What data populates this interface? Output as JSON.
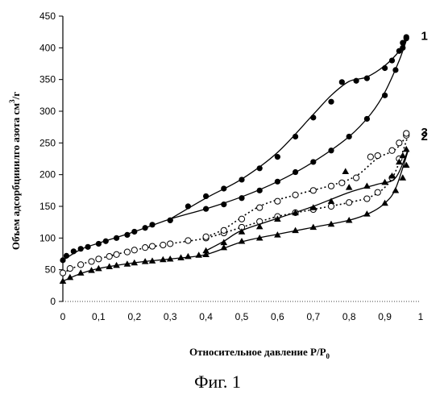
{
  "chart_data": {
    "type": "scatter",
    "title": "",
    "xlabel": "Относительное давление P/P",
    "xlabel_subscript": "0",
    "ylabel": "Объем адсорбцииилго азота см",
    "ylabel_superscript": "3",
    "ylabel_suffix": "/г",
    "xlim": [
      0,
      1
    ],
    "ylim": [
      0,
      450
    ],
    "x_ticks": [
      "0",
      "0,1",
      "0,2",
      "0,3",
      "0,4",
      "0,5",
      "0,6",
      "0,7",
      "0,8",
      "0,9",
      "1"
    ],
    "x_tick_values": [
      0,
      0.1,
      0.2,
      0.3,
      0.4,
      0.5,
      0.6,
      0.7,
      0.8,
      0.9,
      1
    ],
    "y_ticks": [
      "0",
      "50",
      "100",
      "150",
      "200",
      "250",
      "300",
      "350",
      "400",
      "450"
    ],
    "y_tick_values": [
      0,
      50,
      100,
      150,
      200,
      250,
      300,
      350,
      400,
      450
    ],
    "grid": false,
    "legend": "none",
    "series": [
      {
        "name": "1",
        "marker": "filled-circle",
        "line_style": "solid",
        "adsorption": [
          [
            0.0,
            65
          ],
          [
            0.01,
            72
          ],
          [
            0.03,
            79
          ],
          [
            0.05,
            83
          ],
          [
            0.07,
            86
          ],
          [
            0.1,
            91
          ],
          [
            0.12,
            95
          ],
          [
            0.15,
            100
          ],
          [
            0.18,
            105
          ],
          [
            0.2,
            110
          ],
          [
            0.23,
            116
          ],
          [
            0.25,
            121
          ],
          [
            0.3,
            128
          ],
          [
            0.4,
            146
          ],
          [
            0.45,
            153
          ],
          [
            0.5,
            163
          ],
          [
            0.55,
            175
          ],
          [
            0.6,
            189
          ],
          [
            0.65,
            204
          ],
          [
            0.7,
            220
          ],
          [
            0.75,
            238
          ],
          [
            0.8,
            260
          ],
          [
            0.85,
            288
          ],
          [
            0.9,
            325
          ],
          [
            0.93,
            365
          ],
          [
            0.95,
            400
          ],
          [
            0.96,
            415
          ]
        ],
        "desorption": [
          [
            0.96,
            417
          ],
          [
            0.95,
            408
          ],
          [
            0.94,
            395
          ],
          [
            0.92,
            380
          ],
          [
            0.9,
            368
          ],
          [
            0.85,
            352
          ],
          [
            0.82,
            348
          ],
          [
            0.78,
            346
          ],
          [
            0.75,
            315
          ],
          [
            0.7,
            290
          ],
          [
            0.65,
            260
          ],
          [
            0.6,
            228
          ],
          [
            0.55,
            210
          ],
          [
            0.5,
            192
          ],
          [
            0.45,
            178
          ],
          [
            0.4,
            166
          ],
          [
            0.35,
            150
          ],
          [
            0.3,
            128
          ]
        ],
        "curve_adsorption": [
          [
            0.0,
            65
          ],
          [
            0.05,
            82
          ],
          [
            0.1,
            92
          ],
          [
            0.2,
            110
          ],
          [
            0.3,
            130
          ],
          [
            0.4,
            146
          ],
          [
            0.5,
            165
          ],
          [
            0.6,
            189
          ],
          [
            0.7,
            220
          ],
          [
            0.8,
            260
          ],
          [
            0.86,
            295
          ],
          [
            0.9,
            330
          ],
          [
            0.94,
            380
          ],
          [
            0.965,
            420
          ]
        ],
        "curve_desorption": [
          [
            0.965,
            420
          ],
          [
            0.94,
            395
          ],
          [
            0.9,
            372
          ],
          [
            0.85,
            354
          ],
          [
            0.8,
            347
          ],
          [
            0.75,
            325
          ],
          [
            0.7,
            295
          ],
          [
            0.6,
            235
          ],
          [
            0.5,
            193
          ],
          [
            0.4,
            163
          ],
          [
            0.3,
            130
          ]
        ]
      },
      {
        "name": "2",
        "marker": "open-circle",
        "line_style": "dotted",
        "adsorption": [
          [
            0.0,
            45
          ],
          [
            0.02,
            52
          ],
          [
            0.05,
            58
          ],
          [
            0.08,
            63
          ],
          [
            0.1,
            67
          ],
          [
            0.13,
            71
          ],
          [
            0.15,
            74
          ],
          [
            0.18,
            78
          ],
          [
            0.2,
            81
          ],
          [
            0.23,
            85
          ],
          [
            0.25,
            87
          ],
          [
            0.28,
            89
          ],
          [
            0.3,
            91
          ],
          [
            0.35,
            96
          ],
          [
            0.4,
            100
          ],
          [
            0.45,
            108
          ],
          [
            0.5,
            117
          ],
          [
            0.55,
            126
          ],
          [
            0.6,
            134
          ],
          [
            0.65,
            140
          ],
          [
            0.7,
            145
          ],
          [
            0.75,
            150
          ],
          [
            0.8,
            156
          ],
          [
            0.85,
            162
          ],
          [
            0.88,
            172
          ],
          [
            0.92,
            195
          ],
          [
            0.94,
            225
          ],
          [
            0.96,
            262
          ]
        ],
        "desorption": [
          [
            0.96,
            265
          ],
          [
            0.94,
            250
          ],
          [
            0.92,
            238
          ],
          [
            0.88,
            230
          ],
          [
            0.86,
            228
          ],
          [
            0.82,
            195
          ],
          [
            0.78,
            187
          ],
          [
            0.75,
            182
          ],
          [
            0.7,
            175
          ],
          [
            0.65,
            168
          ],
          [
            0.6,
            158
          ],
          [
            0.55,
            148
          ],
          [
            0.5,
            130
          ],
          [
            0.45,
            112
          ],
          [
            0.4,
            102
          ]
        ],
        "curve_adsorption": [
          [
            0.0,
            45
          ],
          [
            0.05,
            58
          ],
          [
            0.1,
            67
          ],
          [
            0.2,
            81
          ],
          [
            0.3,
            91
          ],
          [
            0.4,
            100
          ],
          [
            0.5,
            117
          ],
          [
            0.6,
            134
          ],
          [
            0.7,
            145
          ],
          [
            0.8,
            156
          ],
          [
            0.86,
            165
          ],
          [
            0.9,
            180
          ],
          [
            0.93,
            205
          ],
          [
            0.965,
            262
          ]
        ],
        "curve_desorption": [
          [
            0.965,
            265
          ],
          [
            0.93,
            240
          ],
          [
            0.88,
            226
          ],
          [
            0.82,
            198
          ],
          [
            0.75,
            183
          ],
          [
            0.65,
            168
          ],
          [
            0.55,
            150
          ],
          [
            0.45,
            114
          ],
          [
            0.4,
            102
          ]
        ]
      },
      {
        "name": "3",
        "marker": "filled-triangle",
        "line_style": "solid",
        "adsorption": [
          [
            0.0,
            32
          ],
          [
            0.02,
            38
          ],
          [
            0.05,
            45
          ],
          [
            0.08,
            49
          ],
          [
            0.1,
            52
          ],
          [
            0.13,
            55
          ],
          [
            0.15,
            57
          ],
          [
            0.18,
            59
          ],
          [
            0.2,
            61
          ],
          [
            0.23,
            63
          ],
          [
            0.25,
            64
          ],
          [
            0.28,
            66
          ],
          [
            0.3,
            67
          ],
          [
            0.33,
            69
          ],
          [
            0.35,
            71
          ],
          [
            0.38,
            73
          ],
          [
            0.4,
            74
          ],
          [
            0.45,
            85
          ],
          [
            0.5,
            95
          ],
          [
            0.55,
            100
          ],
          [
            0.6,
            105
          ],
          [
            0.65,
            112
          ],
          [
            0.7,
            117
          ],
          [
            0.75,
            122
          ],
          [
            0.8,
            128
          ],
          [
            0.85,
            138
          ],
          [
            0.9,
            155
          ],
          [
            0.93,
            175
          ],
          [
            0.95,
            195
          ],
          [
            0.96,
            215
          ]
        ],
        "desorption": [
          [
            0.96,
            240
          ],
          [
            0.95,
            230
          ],
          [
            0.94,
            220
          ],
          [
            0.92,
            198
          ],
          [
            0.9,
            188
          ],
          [
            0.85,
            182
          ],
          [
            0.8,
            180
          ],
          [
            0.79,
            205
          ],
          [
            0.75,
            158
          ],
          [
            0.7,
            148
          ],
          [
            0.65,
            140
          ],
          [
            0.6,
            130
          ],
          [
            0.55,
            118
          ],
          [
            0.5,
            110
          ],
          [
            0.45,
            93
          ],
          [
            0.4,
            80
          ]
        ],
        "curve_adsorption": [
          [
            0.0,
            32
          ],
          [
            0.05,
            44
          ],
          [
            0.1,
            52
          ],
          [
            0.2,
            61
          ],
          [
            0.3,
            67
          ],
          [
            0.4,
            74
          ],
          [
            0.5,
            94
          ],
          [
            0.6,
            106
          ],
          [
            0.7,
            117
          ],
          [
            0.8,
            128
          ],
          [
            0.86,
            140
          ],
          [
            0.9,
            155
          ],
          [
            0.93,
            178
          ],
          [
            0.965,
            238
          ]
        ],
        "curve_desorption": [
          [
            0.965,
            240
          ],
          [
            0.93,
            195
          ],
          [
            0.88,
            185
          ],
          [
            0.8,
            172
          ],
          [
            0.7,
            150
          ],
          [
            0.6,
            131
          ],
          [
            0.5,
            112
          ],
          [
            0.45,
            95
          ],
          [
            0.4,
            80
          ]
        ]
      }
    ]
  },
  "caption": "Фиг. 1"
}
